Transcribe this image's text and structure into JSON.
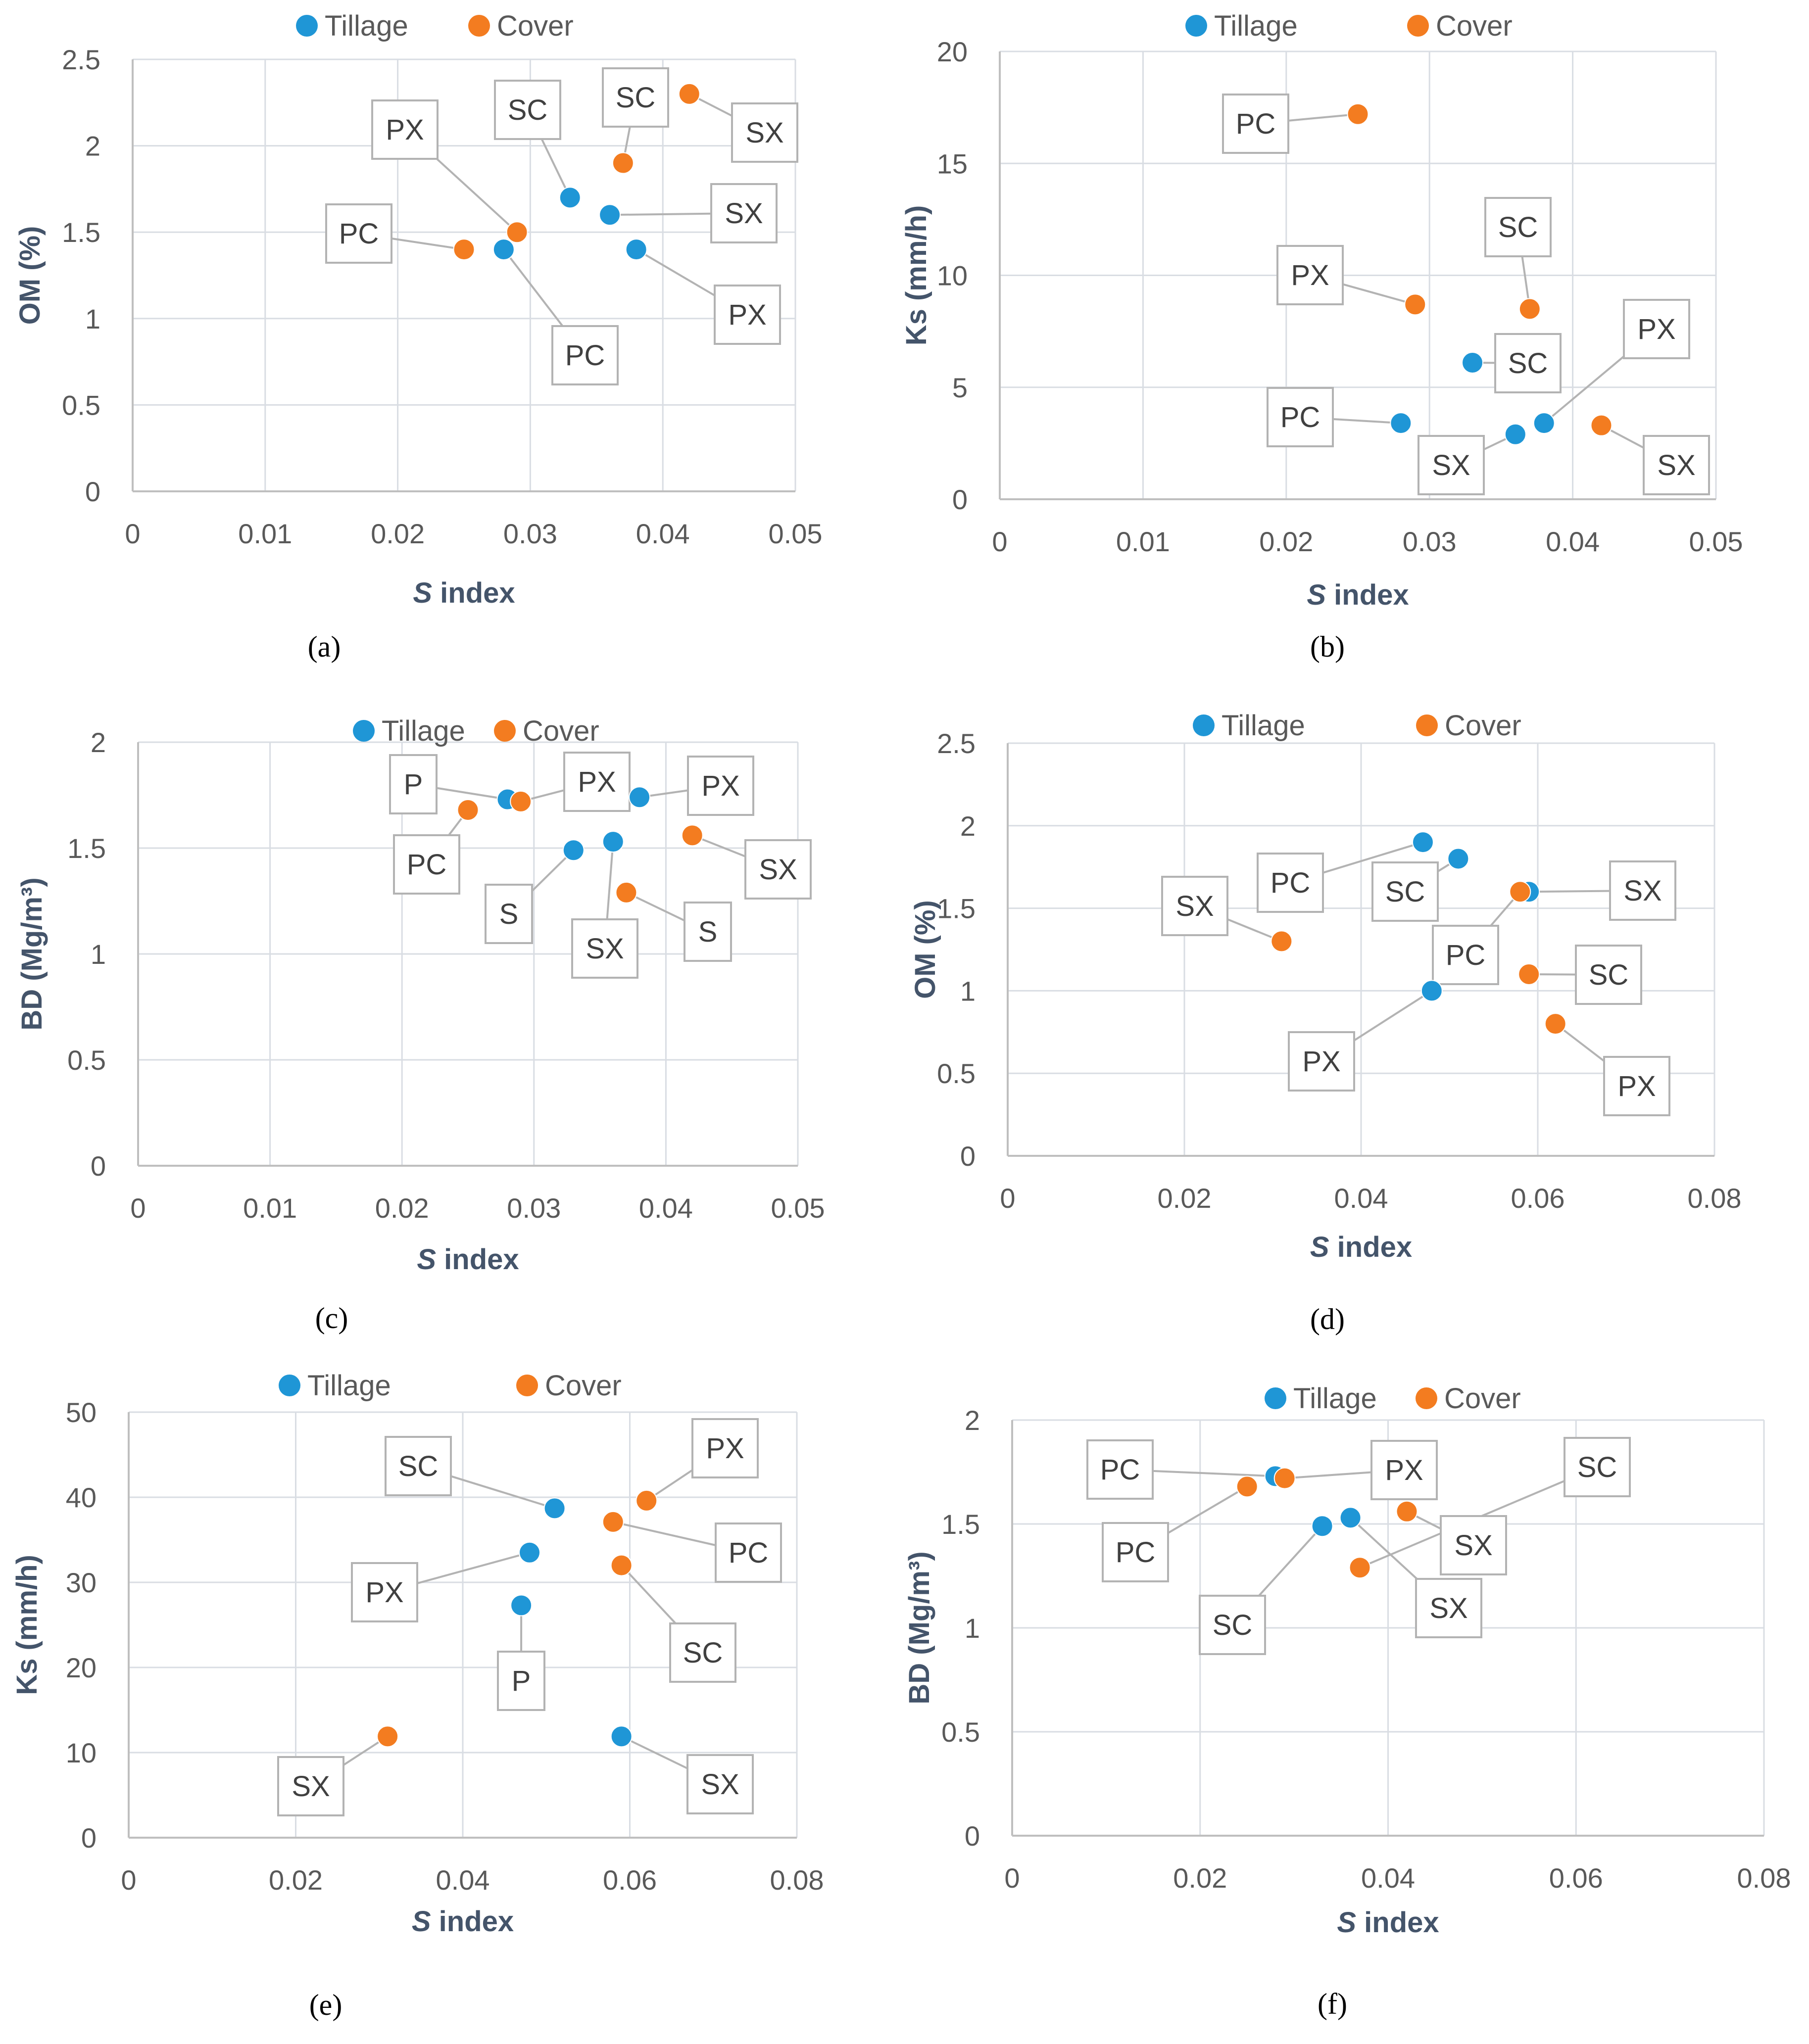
{
  "legend": {
    "series1": "Tillage",
    "series2": "Cover"
  },
  "colors": {
    "tillage": "#1f96d6",
    "cover": "#f37c20",
    "leader": "#b3b3b3",
    "grid": "#d9dde3",
    "axis": "#bfbfbf"
  },
  "chart_data": [
    {
      "id": "a",
      "type": "scatter",
      "caption": "(a)",
      "xlabel_italic": "S",
      "xlabel_rest": " index",
      "ylabel": "OM (%)",
      "xlim": [
        0,
        0.05
      ],
      "ylim": [
        0,
        2.5
      ],
      "xticks": [
        "0",
        "0.01",
        "0.02",
        "0.03",
        "0.04",
        "0.05"
      ],
      "yticks": [
        "0",
        "0.5",
        "1",
        "1.5",
        "2",
        "2.5"
      ],
      "series": [
        {
          "name": "Tillage",
          "points": [
            {
              "x": 0.028,
              "y": 1.4,
              "label": "PC"
            },
            {
              "x": 0.033,
              "y": 1.7,
              "label": "SC"
            },
            {
              "x": 0.036,
              "y": 1.6,
              "label": "SX"
            },
            {
              "x": 0.038,
              "y": 1.4,
              "label": "PX"
            }
          ]
        },
        {
          "name": "Cover",
          "points": [
            {
              "x": 0.025,
              "y": 1.4,
              "label": "PC"
            },
            {
              "x": 0.029,
              "y": 1.5,
              "label": "PX"
            },
            {
              "x": 0.037,
              "y": 1.9,
              "label": "SC"
            },
            {
              "x": 0.042,
              "y": 2.3,
              "label": "SX"
            }
          ]
        }
      ]
    },
    {
      "id": "b",
      "type": "scatter",
      "caption": "(b)",
      "xlabel_italic": "S",
      "xlabel_rest": " index",
      "ylabel": "Ks (mm/h)",
      "xlim": [
        0,
        0.05
      ],
      "ylim": [
        0,
        20
      ],
      "xticks": [
        "0",
        "0.01",
        "0.02",
        "0.03",
        "0.04",
        "0.05"
      ],
      "yticks": [
        "0",
        "5",
        "10",
        "15",
        "20"
      ],
      "series": [
        {
          "name": "Tillage",
          "points": [
            {
              "x": 0.028,
              "y": 3.4,
              "label": "PC"
            },
            {
              "x": 0.033,
              "y": 6.1,
              "label": "SC"
            },
            {
              "x": 0.036,
              "y": 2.9,
              "label": "SX"
            },
            {
              "x": 0.038,
              "y": 3.4,
              "label": "PX"
            }
          ]
        },
        {
          "name": "Cover",
          "points": [
            {
              "x": 0.025,
              "y": 17.2,
              "label": "PC"
            },
            {
              "x": 0.029,
              "y": 8.7,
              "label": "PX"
            },
            {
              "x": 0.037,
              "y": 8.5,
              "label": "SC"
            },
            {
              "x": 0.042,
              "y": 3.3,
              "label": "SX"
            }
          ]
        }
      ]
    },
    {
      "id": "c",
      "type": "scatter",
      "caption": "(c)",
      "xlabel_italic": "S",
      "xlabel_rest": " index",
      "ylabel": "BD (Mg/m³)",
      "xlim": [
        0,
        0.05
      ],
      "ylim": [
        0,
        2
      ],
      "xticks": [
        "0",
        "0.01",
        "0.02",
        "0.03",
        "0.04",
        "0.05"
      ],
      "yticks": [
        "0",
        "0.5",
        "1",
        "1.5",
        "2"
      ],
      "series": [
        {
          "name": "Tillage",
          "points": [
            {
              "x": 0.028,
              "y": 1.73,
              "label": "P"
            },
            {
              "x": 0.033,
              "y": 1.49,
              "label": "S"
            },
            {
              "x": 0.036,
              "y": 1.53,
              "label": "SX"
            },
            {
              "x": 0.038,
              "y": 1.74,
              "label": "PX"
            }
          ]
        },
        {
          "name": "Cover",
          "points": [
            {
              "x": 0.025,
              "y": 1.68,
              "label": "PC"
            },
            {
              "x": 0.029,
              "y": 1.72,
              "label": "PX"
            },
            {
              "x": 0.037,
              "y": 1.29,
              "label": "S"
            },
            {
              "x": 0.042,
              "y": 1.56,
              "label": "SX"
            }
          ]
        }
      ]
    },
    {
      "id": "d",
      "type": "scatter",
      "caption": "(d)",
      "xlabel_italic": "S",
      "xlabel_rest": " index",
      "ylabel": "OM (%)",
      "xlim": [
        0,
        0.08
      ],
      "ylim": [
        0,
        2.5
      ],
      "xticks": [
        "0",
        "0.02",
        "0.04",
        "0.06",
        "0.08"
      ],
      "yticks": [
        "0",
        "0.5",
        "1",
        "1.5",
        "2",
        "2.5"
      ],
      "series": [
        {
          "name": "Tillage",
          "points": [
            {
              "x": 0.047,
              "y": 1.9,
              "label": "PC"
            },
            {
              "x": 0.051,
              "y": 1.8,
              "label": "SC"
            },
            {
              "x": 0.059,
              "y": 1.6,
              "label": "SX"
            },
            {
              "x": 0.048,
              "y": 1.0,
              "label": "PX"
            }
          ]
        },
        {
          "name": "Cover",
          "points": [
            {
              "x": 0.031,
              "y": 1.3,
              "label": "SX"
            },
            {
              "x": 0.058,
              "y": 1.6,
              "label": "PC"
            },
            {
              "x": 0.059,
              "y": 1.1,
              "label": "SC"
            },
            {
              "x": 0.062,
              "y": 0.8,
              "label": "PX"
            }
          ]
        }
      ]
    },
    {
      "id": "e",
      "type": "scatter",
      "caption": "(e)",
      "xlabel_italic": "S",
      "xlabel_rest": " index",
      "ylabel": "Ks (mm/h)",
      "xlim": [
        0,
        0.08
      ],
      "ylim": [
        0,
        50
      ],
      "xticks": [
        "0",
        "0.02",
        "0.04",
        "0.06",
        "0.08"
      ],
      "yticks": [
        "0",
        "10",
        "20",
        "30",
        "40",
        "50"
      ],
      "series": [
        {
          "name": "Tillage",
          "points": [
            {
              "x": 0.051,
              "y": 38.7,
              "label": "SC"
            },
            {
              "x": 0.048,
              "y": 33.5,
              "label": "PX"
            },
            {
              "x": 0.047,
              "y": 27.3,
              "label": "P"
            },
            {
              "x": 0.059,
              "y": 11.9,
              "label": "SX"
            }
          ]
        },
        {
          "name": "Cover",
          "points": [
            {
              "x": 0.062,
              "y": 39.6,
              "label": "PX"
            },
            {
              "x": 0.058,
              "y": 37.1,
              "label": "PC"
            },
            {
              "x": 0.059,
              "y": 32.0,
              "label": "SC"
            },
            {
              "x": 0.031,
              "y": 11.9,
              "label": "SX"
            }
          ]
        }
      ]
    },
    {
      "id": "f",
      "type": "scatter",
      "caption": "(f)",
      "xlabel_italic": "S",
      "xlabel_rest": " index",
      "ylabel": "BD (Mg/m³)",
      "xlim": [
        0,
        0.08
      ],
      "ylim": [
        0,
        2
      ],
      "xticks": [
        "0",
        "0.02",
        "0.04",
        "0.06",
        "0.08"
      ],
      "yticks": [
        "0",
        "0.5",
        "1",
        "1.5",
        "2"
      ],
      "series": [
        {
          "name": "Tillage",
          "points": [
            {
              "x": 0.028,
              "y": 1.73,
              "label": "PC"
            },
            {
              "x": 0.033,
              "y": 1.49,
              "label": "SC"
            },
            {
              "x": 0.036,
              "y": 1.53,
              "label": "SX"
            }
          ]
        },
        {
          "name": "Cover",
          "points": [
            {
              "x": 0.025,
              "y": 1.68,
              "label": "PC"
            },
            {
              "x": 0.029,
              "y": 1.72,
              "label": "PX"
            },
            {
              "x": 0.037,
              "y": 1.29,
              "label": "SC"
            },
            {
              "x": 0.042,
              "y": 1.56,
              "label": "SX"
            }
          ]
        }
      ]
    }
  ]
}
